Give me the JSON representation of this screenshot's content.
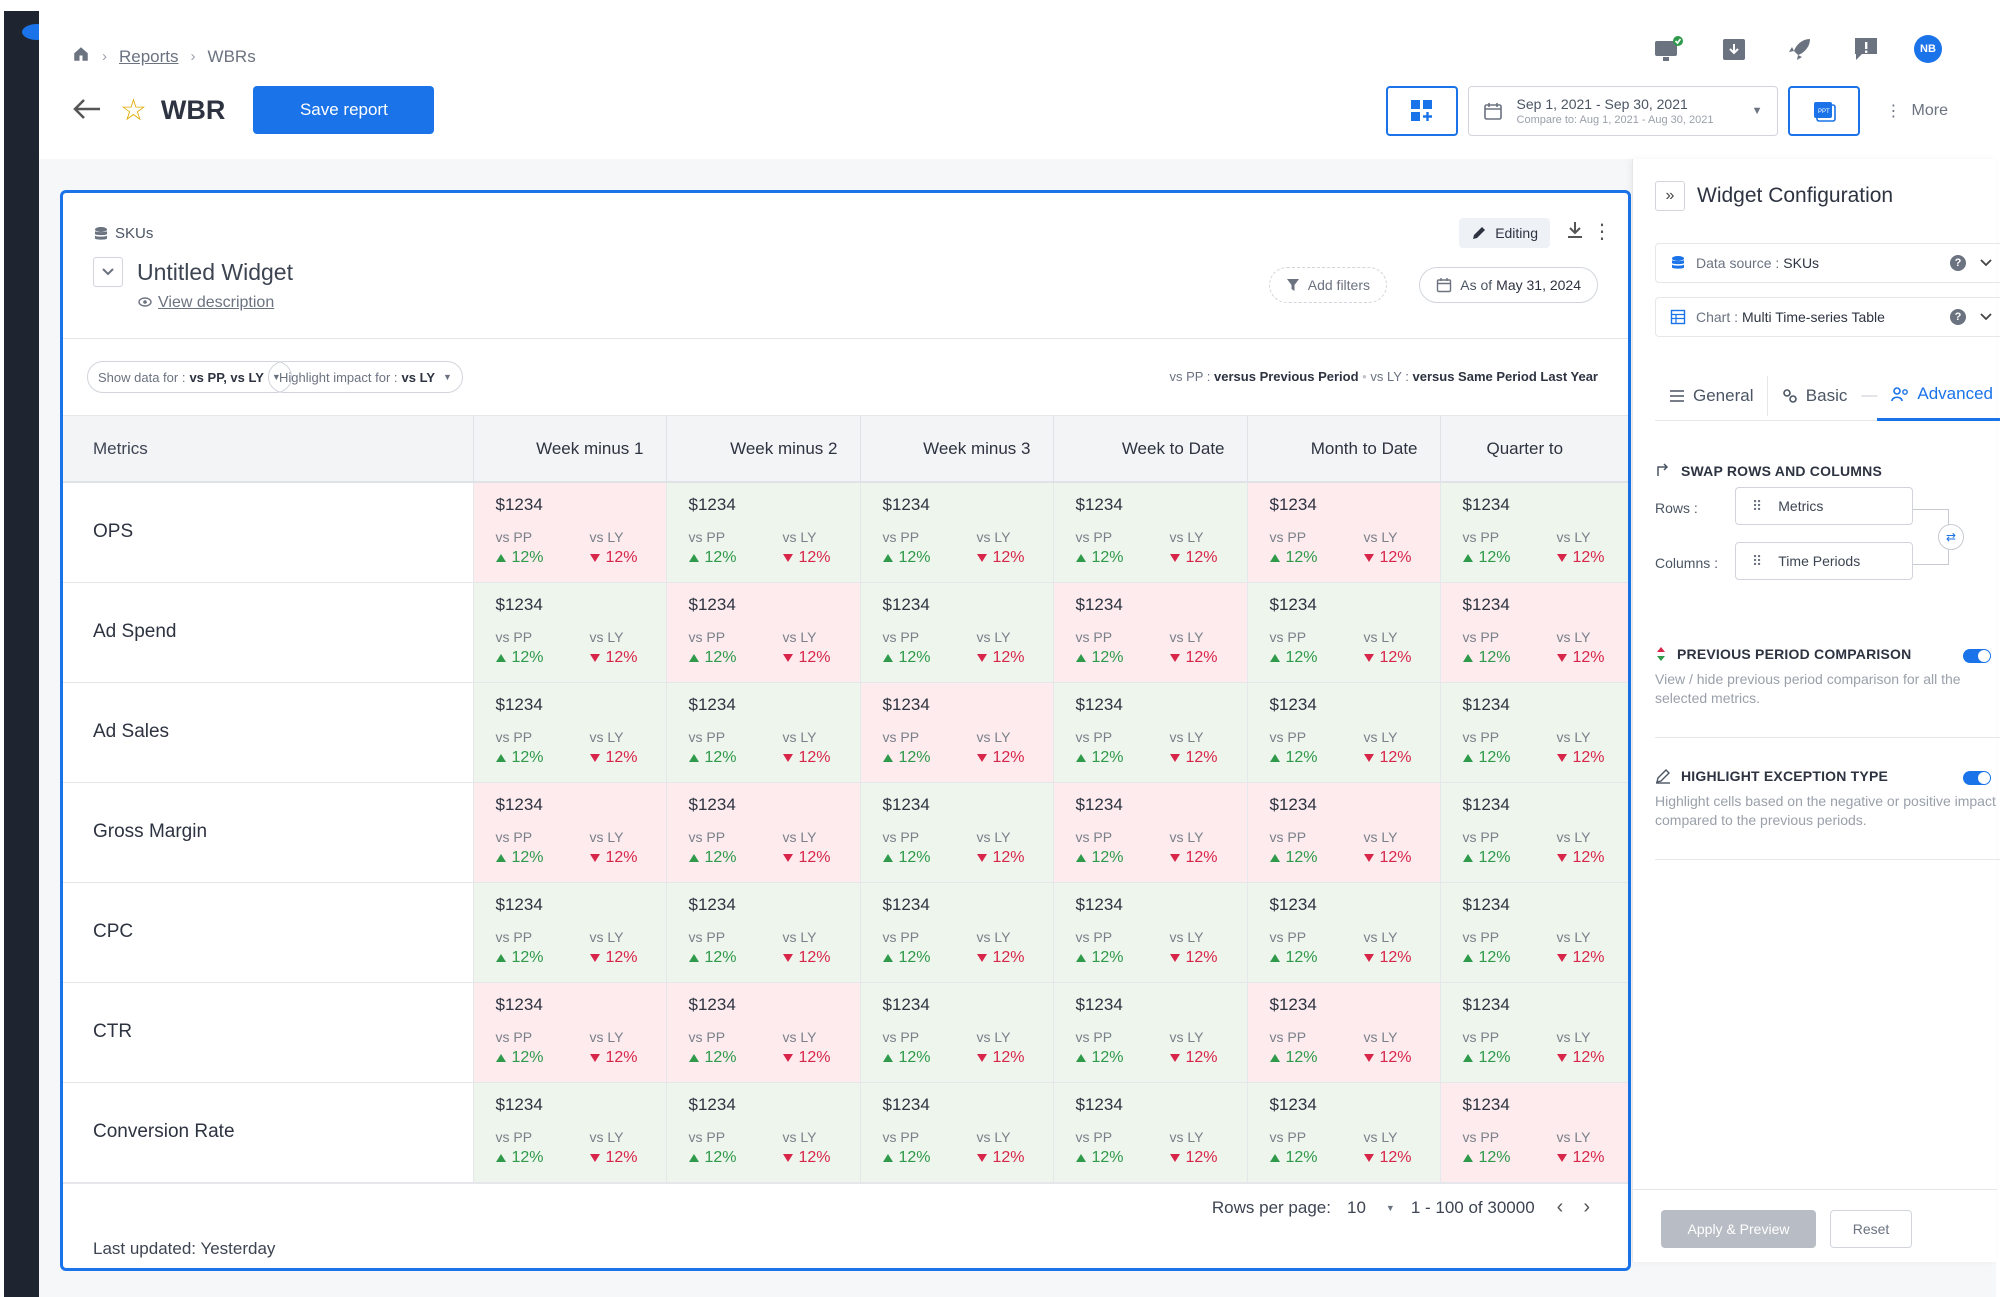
{
  "breadcrumb": {
    "home_icon": "home-icon",
    "items": [
      "Reports",
      "WBRs"
    ]
  },
  "page": {
    "title": "WBR",
    "save_label": "Save report"
  },
  "toolbar": {
    "date_range": "Sep 1, 2021 - Sep 30, 2021",
    "compare": "Compare to: Aug 1, 2021 - Aug 30, 2021",
    "more_label": "More",
    "avatar_initials": "NB"
  },
  "widget": {
    "source": "SKUs",
    "title": "Untitled Widget",
    "view_description": "View description",
    "editing_label": "Editing",
    "add_filters": "Add filters",
    "as_of_prefix": "As of",
    "as_of_date": "May 31, 2024",
    "filters": {
      "show_label": "Show data for :",
      "show_value": "vs PP, vs LY",
      "highlight_label": "Highlight impact for :",
      "highlight_value": "vs LY"
    },
    "legend": {
      "pp_key": "vs PP :",
      "pp_desc": "versus Previous Period",
      "ly_key": "vs LY :",
      "ly_desc": "versus Same Period Last Year"
    },
    "columns": [
      "Metrics",
      "Week minus 1",
      "Week minus 2",
      "Week minus 3",
      "Week to Date",
      "Month to Date",
      "Quarter to"
    ],
    "cell_labels": {
      "value": "$1234",
      "pp": "vs PP",
      "ly": "vs LY",
      "pp_val": "12%",
      "ly_val": "12%"
    },
    "rows": [
      {
        "name": "OPS",
        "impact": [
          "neg",
          "pos",
          "pos",
          "pos",
          "neg",
          "pos"
        ]
      },
      {
        "name": "Ad Spend",
        "impact": [
          "pos",
          "neg",
          "pos",
          "neg",
          "pos",
          "neg"
        ]
      },
      {
        "name": "Ad Sales",
        "impact": [
          "pos",
          "pos",
          "neg",
          "pos",
          "pos",
          "pos"
        ]
      },
      {
        "name": "Gross Margin",
        "impact": [
          "neg",
          "neg",
          "pos",
          "neg",
          "neg",
          "pos"
        ]
      },
      {
        "name": "CPC",
        "impact": [
          "pos",
          "pos",
          "pos",
          "pos",
          "pos",
          "pos"
        ]
      },
      {
        "name": "CTR",
        "impact": [
          "neg",
          "neg",
          "pos",
          "pos",
          "neg",
          "pos"
        ]
      },
      {
        "name": "Conversion Rate",
        "impact": [
          "pos",
          "pos",
          "pos",
          "pos",
          "pos",
          "neg"
        ]
      }
    ],
    "pager": {
      "rows_label": "Rows per page:",
      "rows_value": "10",
      "range": "1 - 100 of 30000"
    },
    "last_updated": "Last updated: Yesterday"
  },
  "panel": {
    "title": "Widget Configuration",
    "data_source_label": "Data source :",
    "data_source_value": "SKUs",
    "chart_label": "Chart :",
    "chart_value": "Multi Time-series Table",
    "tabs": [
      "General",
      "Basic",
      "Advanced"
    ],
    "swap_title": "SWAP ROWS AND COLUMNS",
    "rows_label": "Rows :",
    "rows_value": "Metrics",
    "cols_label": "Columns :",
    "cols_value": "Time Periods",
    "ppc_title": "PREVIOUS PERIOD COMPARISON",
    "ppc_desc": "View / hide previous period comparison for all the selected metrics.",
    "het_title": "HIGHLIGHT EXCEPTION TYPE",
    "het_desc": "Highlight cells based on the negative or positive impact compared to the previous periods.",
    "apply_label": "Apply & Preview",
    "reset_label": "Reset"
  },
  "colors": {
    "accent": "#1a73e8",
    "positive_bg": "#eef5ed",
    "negative_bg": "#fdebee",
    "up": "#2e9a4a",
    "down": "#d8264a"
  }
}
